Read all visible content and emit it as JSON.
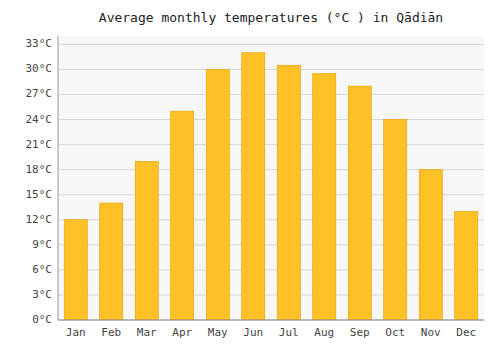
{
  "chart_data": {
    "type": "bar",
    "title": "Average monthly temperatures (°C ) in Qādiān",
    "categories": [
      "Jan",
      "Feb",
      "Mar",
      "Apr",
      "May",
      "Jun",
      "Jul",
      "Aug",
      "Sep",
      "Oct",
      "Nov",
      "Dec"
    ],
    "values": [
      12,
      14,
      19,
      25,
      30,
      32,
      30.5,
      29.5,
      28,
      24,
      18,
      13
    ],
    "color": "#FFC125",
    "ylim": [
      0,
      34
    ],
    "yticks": [
      {
        "value": 0,
        "label": "0°C"
      },
      {
        "value": 3,
        "label": "3°C"
      },
      {
        "value": 6,
        "label": "6°C"
      },
      {
        "value": 9,
        "label": "9°C"
      },
      {
        "value": 12,
        "label": "12°C"
      },
      {
        "value": 15,
        "label": "15°C"
      },
      {
        "value": 18,
        "label": "18°C"
      },
      {
        "value": 21,
        "label": "21°C"
      },
      {
        "value": 24,
        "label": "24°C"
      },
      {
        "value": 27,
        "label": "27°C"
      },
      {
        "value": 30,
        "label": "30°C"
      },
      {
        "value": 33,
        "label": "33°C"
      }
    ],
    "grid": true
  }
}
